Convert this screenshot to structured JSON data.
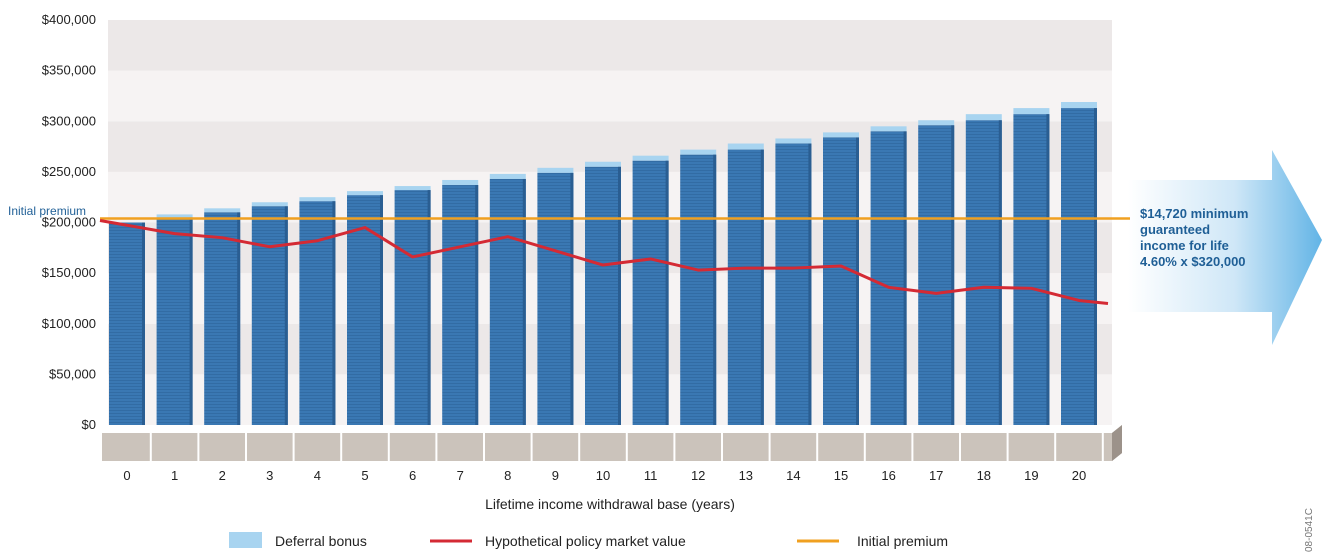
{
  "chart_data": {
    "type": "bar",
    "xlabel": "Lifetime income withdrawal base (years)",
    "categories": [
      "0",
      "1",
      "2",
      "3",
      "4",
      "5",
      "6",
      "7",
      "8",
      "9",
      "10",
      "11",
      "12",
      "13",
      "14",
      "15",
      "16",
      "17",
      "18",
      "19",
      "20"
    ],
    "y_ticks": [
      "$0",
      "$50,000",
      "$100,000",
      "$150,000",
      "$200,000",
      "$250,000",
      "$300,000",
      "$350,000",
      "$400,000"
    ],
    "ylim": [
      0,
      400000
    ],
    "series": [
      {
        "name": "Deferral bonus",
        "kind": "bar",
        "color": "#a8d4f0",
        "base_color": "#3a78b3",
        "values": [
          200000,
          208000,
          214000,
          220000,
          225000,
          231000,
          236000,
          242000,
          248000,
          254000,
          260000,
          266000,
          272000,
          278000,
          283000,
          289000,
          295000,
          301000,
          307000,
          313000,
          319000
        ],
        "base_values": [
          200000,
          205000,
          210000,
          216000,
          221000,
          227000,
          232000,
          237000,
          243000,
          249000,
          255000,
          261000,
          267000,
          272000,
          278000,
          284000,
          290000,
          296000,
          301000,
          307000,
          313000
        ]
      },
      {
        "name": "Hypothetical policy market value",
        "kind": "line",
        "color": "#d42a34",
        "values": [
          200000,
          189000,
          185000,
          176000,
          182000,
          195000,
          166000,
          176000,
          186000,
          172000,
          158000,
          164000,
          153000,
          155000,
          155000,
          157000,
          136000,
          130000,
          136000,
          135000,
          123000
        ]
      },
      {
        "name": "Initial premium",
        "kind": "line",
        "color": "#f0a020",
        "value": 204000
      }
    ],
    "annotations": {
      "initial_premium_label": "Initial premium",
      "callout_lines": [
        "$14,720 minimum",
        "guaranteed",
        "income for life",
        "4.60% x $320,000"
      ],
      "figure_code": "08-0541C"
    }
  }
}
